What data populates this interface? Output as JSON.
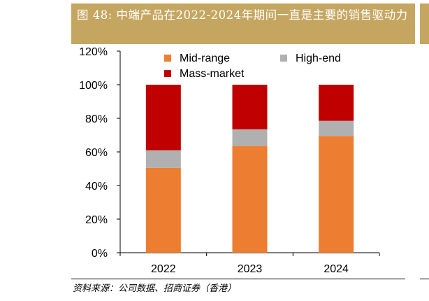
{
  "title": "图 48: 中端产品在2022-2024年期间一直是主要的销售驱动力",
  "source": "资料来源：公司数据、招商证券（香港）",
  "colors": {
    "title_bg": "#c5a661",
    "mid": "#ed7d31",
    "high": "#b0b0b0",
    "mass": "#c00000"
  },
  "chart_data": {
    "type": "bar",
    "stacked": true,
    "categories": [
      "2022",
      "2023",
      "2024"
    ],
    "series": [
      {
        "name": "Mid-range",
        "values": [
          50.5,
          63.5,
          69.5
        ],
        "color": "#ed7d31"
      },
      {
        "name": "High-end",
        "values": [
          10.5,
          10.0,
          9.0
        ],
        "color": "#b0b0b0"
      },
      {
        "name": "Mass-market",
        "values": [
          39.0,
          26.5,
          21.5
        ],
        "color": "#c00000"
      }
    ],
    "ylim": [
      0,
      120
    ],
    "yticks": [
      "0%",
      "20%",
      "40%",
      "60%",
      "80%",
      "100%",
      "120%"
    ],
    "xlabel": "",
    "ylabel": "",
    "grid": false,
    "legend": "top"
  }
}
